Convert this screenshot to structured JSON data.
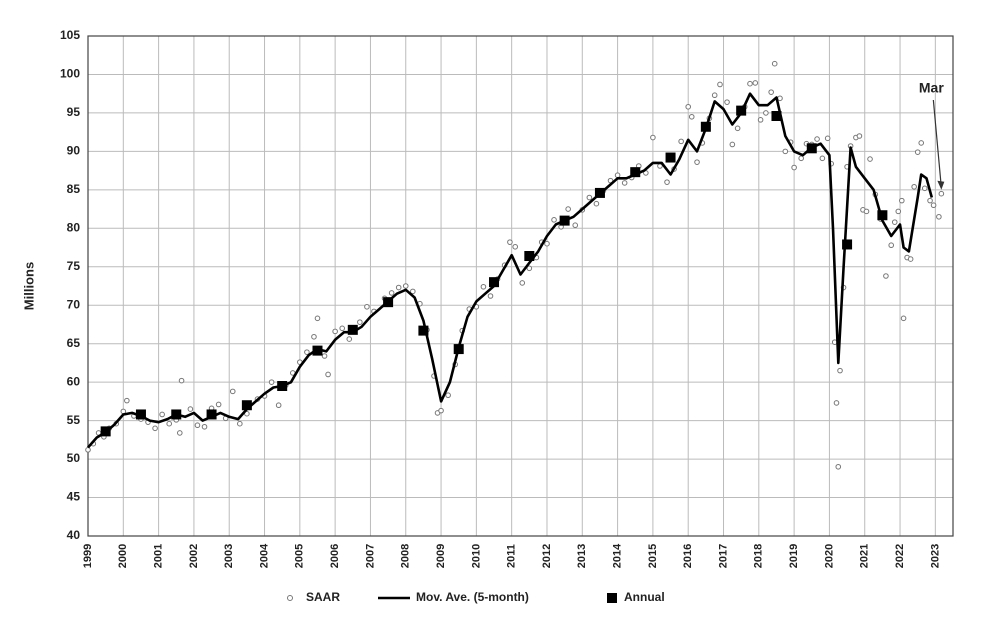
{
  "chart_data": {
    "type": "line",
    "y_label": "Millions",
    "annotation": "Mar",
    "xlim": [
      1999,
      2023.5
    ],
    "xticks": [
      1999,
      2000,
      2001,
      2002,
      2003,
      2004,
      2005,
      2006,
      2007,
      2008,
      2009,
      2010,
      2011,
      2012,
      2013,
      2014,
      2015,
      2016,
      2017,
      2018,
      2019,
      2020,
      2021,
      2022,
      2023
    ],
    "ylim": [
      40,
      105
    ],
    "yticks": [
      40,
      45,
      50,
      55,
      60,
      65,
      70,
      75,
      80,
      85,
      90,
      95,
      100,
      105
    ],
    "grid": true,
    "legend": "bottom",
    "series": [
      {
        "name": "SAAR",
        "style": "circle",
        "color": "#777777",
        "x": [
          1999.0,
          1999.15,
          1999.3,
          1999.45,
          1999.6,
          1999.8,
          2000.0,
          2000.1,
          2000.3,
          2000.5,
          2000.7,
          2000.9,
          2001.1,
          2001.3,
          2001.5,
          2001.6,
          2001.65,
          2001.9,
          2002.1,
          2002.3,
          2002.5,
          2002.7,
          2002.9,
          2003.1,
          2003.3,
          2003.5,
          2003.8,
          2004.0,
          2004.2,
          2004.4,
          2004.6,
          2004.8,
          2005.0,
          2005.2,
          2005.4,
          2005.5,
          2005.7,
          2005.8,
          2006.0,
          2006.2,
          2006.4,
          2006.7,
          2006.9,
          2007.1,
          2007.4,
          2007.6,
          2007.8,
          2008.0,
          2008.2,
          2008.4,
          2008.6,
          2008.8,
          2008.9,
          2009.0,
          2009.2,
          2009.4,
          2009.6,
          2009.8,
          2010.0,
          2010.2,
          2010.4,
          2010.6,
          2010.8,
          2010.95,
          2011.1,
          2011.3,
          2011.5,
          2011.7,
          2011.85,
          2012.0,
          2012.2,
          2012.4,
          2012.6,
          2012.8,
          2013.0,
          2013.2,
          2013.4,
          2013.6,
          2013.8,
          2014.0,
          2014.2,
          2014.4,
          2014.6,
          2014.8,
          2015.0,
          2015.2,
          2015.4,
          2015.6,
          2015.8,
          2016.0,
          2016.1,
          2016.25,
          2016.4,
          2016.6,
          2016.75,
          2016.9,
          2017.1,
          2017.25,
          2017.4,
          2017.6,
          2017.75,
          2017.9,
          2018.05,
          2018.2,
          2018.35,
          2018.45,
          2018.6,
          2018.75,
          2018.9,
          2019.0,
          2019.2,
          2019.35,
          2019.5,
          2019.65,
          2019.8,
          2019.95,
          2020.05,
          2020.15,
          2020.2,
          2020.25,
          2020.3,
          2020.4,
          2020.5,
          2020.6,
          2020.75,
          2020.85,
          2020.95,
          2021.05,
          2021.15,
          2021.3,
          2021.45,
          2021.6,
          2021.75,
          2021.85,
          2021.95,
          2022.05,
          2022.1,
          2022.2,
          2022.3,
          2022.4,
          2022.5,
          2022.6,
          2022.7,
          2022.85,
          2022.95,
          2023.1,
          2023.17
        ],
        "values": [
          51.2,
          52.0,
          53.4,
          52.9,
          54.0,
          54.6,
          56.2,
          57.6,
          55.6,
          55.2,
          54.8,
          54.0,
          55.8,
          54.6,
          55.1,
          53.4,
          60.2,
          56.5,
          54.4,
          54.2,
          56.6,
          57.1,
          55.3,
          58.8,
          54.6,
          55.9,
          57.8,
          58.2,
          60.0,
          57.0,
          59.6,
          61.2,
          62.6,
          63.9,
          65.9,
          68.3,
          63.4,
          61.0,
          66.6,
          67.0,
          65.6,
          67.8,
          69.8,
          69.2,
          70.9,
          71.6,
          72.3,
          72.5,
          71.8,
          70.2,
          66.8,
          60.8,
          56.0,
          56.3,
          58.3,
          62.3,
          66.7,
          69.5,
          69.8,
          72.4,
          71.2,
          73.4,
          75.2,
          78.2,
          77.6,
          72.9,
          74.8,
          76.2,
          78.2,
          78.0,
          81.1,
          80.2,
          82.5,
          80.4,
          82.4,
          84.0,
          83.2,
          84.9,
          86.2,
          86.9,
          85.9,
          86.6,
          88.1,
          87.2,
          91.8,
          88.1,
          86.0,
          87.7,
          91.3,
          95.8,
          94.5,
          88.6,
          91.1,
          94.3,
          97.3,
          98.7,
          96.4,
          90.9,
          93.0,
          95.8,
          98.8,
          98.9,
          94.1,
          95.0,
          97.7,
          101.4,
          96.9,
          90.0,
          91.2,
          87.9,
          89.1,
          91.0,
          90.9,
          91.6,
          89.1,
          91.7,
          88.4,
          65.2,
          57.3,
          49.0,
          61.5,
          72.3,
          88.0,
          90.7,
          91.8,
          92.0,
          82.4,
          82.2,
          89.0,
          84.4,
          81.2,
          73.8,
          77.8,
          80.8,
          82.2,
          83.6,
          68.3,
          76.2,
          76.0,
          85.4,
          89.9,
          91.1,
          85.2,
          83.6,
          83.0,
          81.5,
          84.5
        ]
      },
      {
        "name": "Mov. Ave. (5-month)",
        "style": "line",
        "color": "#000000",
        "x": [
          1999.0,
          1999.25,
          1999.5,
          1999.75,
          2000.0,
          2000.25,
          2000.5,
          2000.75,
          2001.0,
          2001.25,
          2001.5,
          2001.75,
          2002.0,
          2002.25,
          2002.5,
          2002.75,
          2003.0,
          2003.25,
          2003.5,
          2003.75,
          2004.0,
          2004.25,
          2004.5,
          2004.75,
          2005.0,
          2005.25,
          2005.5,
          2005.75,
          2006.0,
          2006.25,
          2006.5,
          2006.75,
          2007.0,
          2007.25,
          2007.5,
          2007.75,
          2008.0,
          2008.25,
          2008.5,
          2008.75,
          2009.0,
          2009.25,
          2009.5,
          2009.75,
          2010.0,
          2010.25,
          2010.5,
          2010.75,
          2011.0,
          2011.25,
          2011.5,
          2011.75,
          2012.0,
          2012.25,
          2012.5,
          2012.75,
          2013.0,
          2013.25,
          2013.5,
          2013.75,
          2014.0,
          2014.25,
          2014.5,
          2014.75,
          2015.0,
          2015.25,
          2015.5,
          2015.75,
          2016.0,
          2016.25,
          2016.5,
          2016.75,
          2017.0,
          2017.25,
          2017.5,
          2017.75,
          2018.0,
          2018.25,
          2018.5,
          2018.75,
          2019.0,
          2019.25,
          2019.5,
          2019.75,
          2020.0,
          2020.1,
          2020.25,
          2020.4,
          2020.6,
          2020.75,
          2021.0,
          2021.25,
          2021.5,
          2021.75,
          2022.0,
          2022.1,
          2022.25,
          2022.5,
          2022.6,
          2022.75,
          2022.9
        ],
        "values": [
          51.5,
          52.8,
          53.5,
          54.5,
          55.8,
          56.0,
          55.6,
          55.0,
          54.8,
          55.2,
          55.8,
          55.5,
          56.0,
          55.0,
          55.5,
          56.0,
          55.5,
          55.2,
          56.5,
          57.5,
          58.5,
          59.3,
          59.5,
          60.0,
          62.0,
          63.5,
          64.3,
          64.0,
          65.5,
          66.5,
          66.5,
          67.2,
          68.5,
          69.5,
          70.5,
          71.5,
          72.0,
          71.0,
          68.0,
          63.0,
          57.5,
          60.0,
          64.5,
          68.5,
          70.5,
          71.5,
          72.5,
          74.5,
          76.5,
          74.0,
          75.5,
          77.0,
          79.0,
          80.5,
          81.0,
          81.5,
          82.5,
          83.5,
          84.5,
          85.5,
          86.5,
          86.5,
          87.0,
          87.5,
          88.5,
          88.5,
          87.0,
          89.0,
          91.5,
          90.0,
          93.0,
          96.5,
          95.5,
          93.5,
          95.0,
          97.5,
          96.0,
          96.0,
          97.0,
          92.0,
          90.0,
          89.5,
          90.5,
          91.0,
          89.5,
          80.0,
          62.5,
          75.0,
          90.5,
          88.0,
          86.5,
          85.0,
          81.0,
          79.0,
          80.5,
          77.5,
          77.0,
          84.0,
          87.0,
          86.5,
          84.0
        ]
      },
      {
        "name": "Annual",
        "style": "square",
        "color": "#000000",
        "x": [
          1999.5,
          2000.5,
          2001.5,
          2002.5,
          2003.5,
          2004.5,
          2005.5,
          2006.5,
          2007.5,
          2008.5,
          2009.5,
          2010.5,
          2011.5,
          2012.5,
          2013.5,
          2014.5,
          2015.5,
          2016.5,
          2017.5,
          2018.5,
          2019.5,
          2020.5,
          2021.5
        ],
        "values": [
          53.6,
          55.8,
          55.8,
          55.8,
          57.0,
          59.5,
          64.1,
          66.8,
          70.4,
          66.7,
          64.3,
          73.0,
          76.4,
          81.0,
          84.6,
          87.3,
          89.2,
          93.2,
          95.3,
          94.6,
          90.4,
          77.9,
          81.7
        ]
      }
    ]
  }
}
